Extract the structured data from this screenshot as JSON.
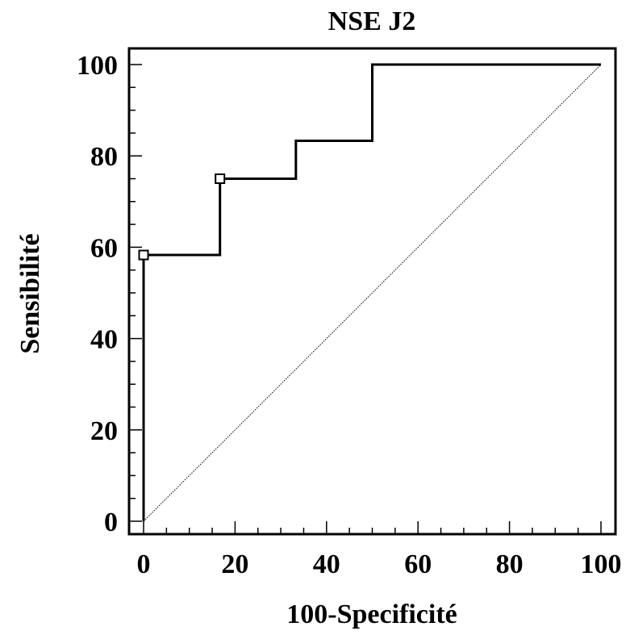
{
  "chart_data": {
    "type": "line",
    "title": "NSE J2",
    "xlabel": "100-Specificité",
    "ylabel": "Sensibilité",
    "xlim": [
      0,
      100
    ],
    "ylim": [
      0,
      100
    ],
    "x_ticks": [
      "0",
      "20",
      "40",
      "60",
      "80",
      "100"
    ],
    "y_ticks": [
      "0",
      "20",
      "40",
      "60",
      "80",
      "100"
    ],
    "grid": false,
    "legend": "none",
    "series": [
      {
        "kind": "step",
        "x": [
          0,
          0,
          16.7,
          16.7,
          33.3,
          33.3,
          50,
          50,
          100
        ],
        "y": [
          0,
          58.3,
          58.3,
          75,
          75,
          83.3,
          83.3,
          100,
          100
        ]
      },
      {
        "kind": "reference-diagonal",
        "style": "dotted",
        "x": [
          0,
          100
        ],
        "y": [
          0,
          100
        ]
      }
    ],
    "markers": [
      {
        "x": 0,
        "y": 58.3
      },
      {
        "x": 16.7,
        "y": 75
      }
    ]
  }
}
